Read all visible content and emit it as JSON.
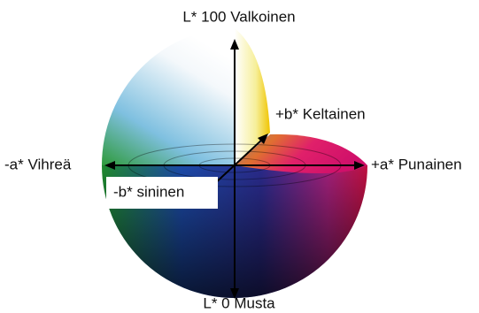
{
  "title": "L* 100 Valkoinen",
  "labels": {
    "top": "L* 100 Valkoinen",
    "yellow": "+b* Keltainen",
    "green": "-a* Vihreä",
    "red": "+a* Punainen",
    "blue": "-b* sininen",
    "bottom": "L* 0 Musta"
  }
}
